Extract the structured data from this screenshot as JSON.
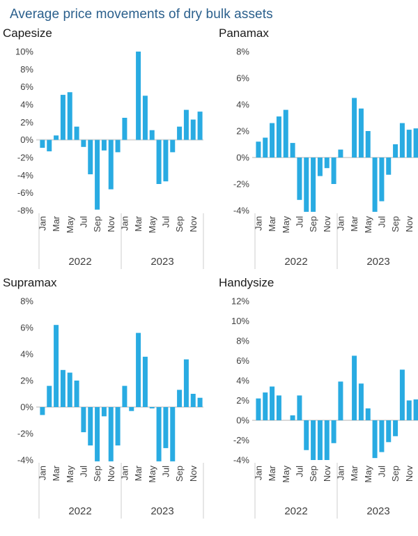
{
  "page_title": "Average price movements of dry bulk assets",
  "colors": {
    "bar": "#29ABE2",
    "page_title": "#2A5F8C",
    "chart_title": "#1A1A1A",
    "axis_text": "#404040",
    "zero_line": "#D9D9D9",
    "separator": "#CCCCCC"
  },
  "chart_data": [
    {
      "type": "bar",
      "title": "Capesize",
      "ylabel": "",
      "xlabel": "",
      "ylim": [
        -8,
        10
      ],
      "ytick_labels": [
        "10%",
        "8%",
        "6%",
        "4%",
        "2%",
        "0%",
        "-2%",
        "-4%",
        "-6%",
        "-8%"
      ],
      "xtick_labels": [
        "Jan",
        "Mar",
        "May",
        "Jul",
        "Sep",
        "Nov"
      ],
      "year_groups": [
        "2022",
        "2023"
      ],
      "grid": false,
      "legend": false,
      "series": [
        {
          "name": "2022",
          "values": [
            -0.9,
            -1.3,
            0.5,
            5.1,
            5.4,
            1.5,
            -0.8,
            -3.9,
            -7.9,
            -1.2,
            -5.6,
            -1.4
          ]
        },
        {
          "name": "2023",
          "values": [
            2.5,
            0,
            10.0,
            5.0,
            1.1,
            -5.0,
            -4.7,
            -1.4,
            1.5,
            3.4,
            2.3,
            3.2
          ]
        }
      ]
    },
    {
      "type": "bar",
      "title": "Panamax",
      "ylabel": "",
      "xlabel": "",
      "ylim": [
        -4,
        8
      ],
      "ytick_labels": [
        "8%",
        "6%",
        "4%",
        "2%",
        "0%",
        "-2%",
        "-4%"
      ],
      "xtick_labels": [
        "Jan",
        "Mar",
        "May",
        "Jul",
        "Sep",
        "Nov"
      ],
      "year_groups": [
        "2022",
        "2023"
      ],
      "grid": false,
      "legend": false,
      "series": [
        {
          "name": "2022",
          "values": [
            1.2,
            1.5,
            2.6,
            3.1,
            3.6,
            1.1,
            -3.2,
            -4.1,
            -4.1,
            -1.4,
            -0.8,
            -2.0
          ]
        },
        {
          "name": "2023",
          "values": [
            0.6,
            0,
            4.5,
            3.7,
            2.0,
            -4.1,
            -3.3,
            -1.3,
            1.0,
            2.6,
            2.1,
            2.2
          ]
        }
      ]
    },
    {
      "type": "bar",
      "title": "Supramax",
      "ylabel": "",
      "xlabel": "",
      "ylim": [
        -4,
        8
      ],
      "ytick_labels": [
        "8%",
        "6%",
        "4%",
        "2%",
        "0%",
        "-2%",
        "-4%"
      ],
      "xtick_labels": [
        "Jan",
        "Mar",
        "May",
        "Jul",
        "Sep",
        "Nov"
      ],
      "year_groups": [
        "2022",
        "2023"
      ],
      "grid": false,
      "legend": false,
      "series": [
        {
          "name": "2022",
          "values": [
            -0.6,
            1.6,
            6.2,
            2.8,
            2.6,
            2.0,
            -1.9,
            -2.9,
            -4.1,
            -0.7,
            -4.1,
            -2.9
          ]
        },
        {
          "name": "2023",
          "values": [
            1.6,
            -0.3,
            5.6,
            3.8,
            -0.1,
            -4.1,
            -3.1,
            -4.1,
            1.3,
            3.6,
            1.0,
            0.7
          ]
        }
      ]
    },
    {
      "type": "bar",
      "title": "Handysize",
      "ylabel": "",
      "xlabel": "",
      "ylim": [
        -4,
        12
      ],
      "ytick_labels": [
        "12%",
        "10%",
        "8%",
        "6%",
        "4%",
        "2%",
        "0%",
        "-2%",
        "-4%"
      ],
      "xtick_labels": [
        "Jan",
        "Mar",
        "May",
        "Jul",
        "Sep",
        "Nov"
      ],
      "year_groups": [
        "2022",
        "2023"
      ],
      "grid": false,
      "legend": false,
      "series": [
        {
          "name": "2022",
          "values": [
            2.2,
            2.8,
            3.4,
            2.5,
            0,
            0.5,
            2.5,
            -3.0,
            -4.0,
            -4.0,
            -4.0,
            -2.3
          ]
        },
        {
          "name": "2023",
          "values": [
            3.9,
            0,
            6.5,
            3.7,
            1.2,
            -3.8,
            -3.2,
            -2.2,
            -1.6,
            5.1,
            2.0,
            2.1
          ]
        }
      ]
    }
  ]
}
